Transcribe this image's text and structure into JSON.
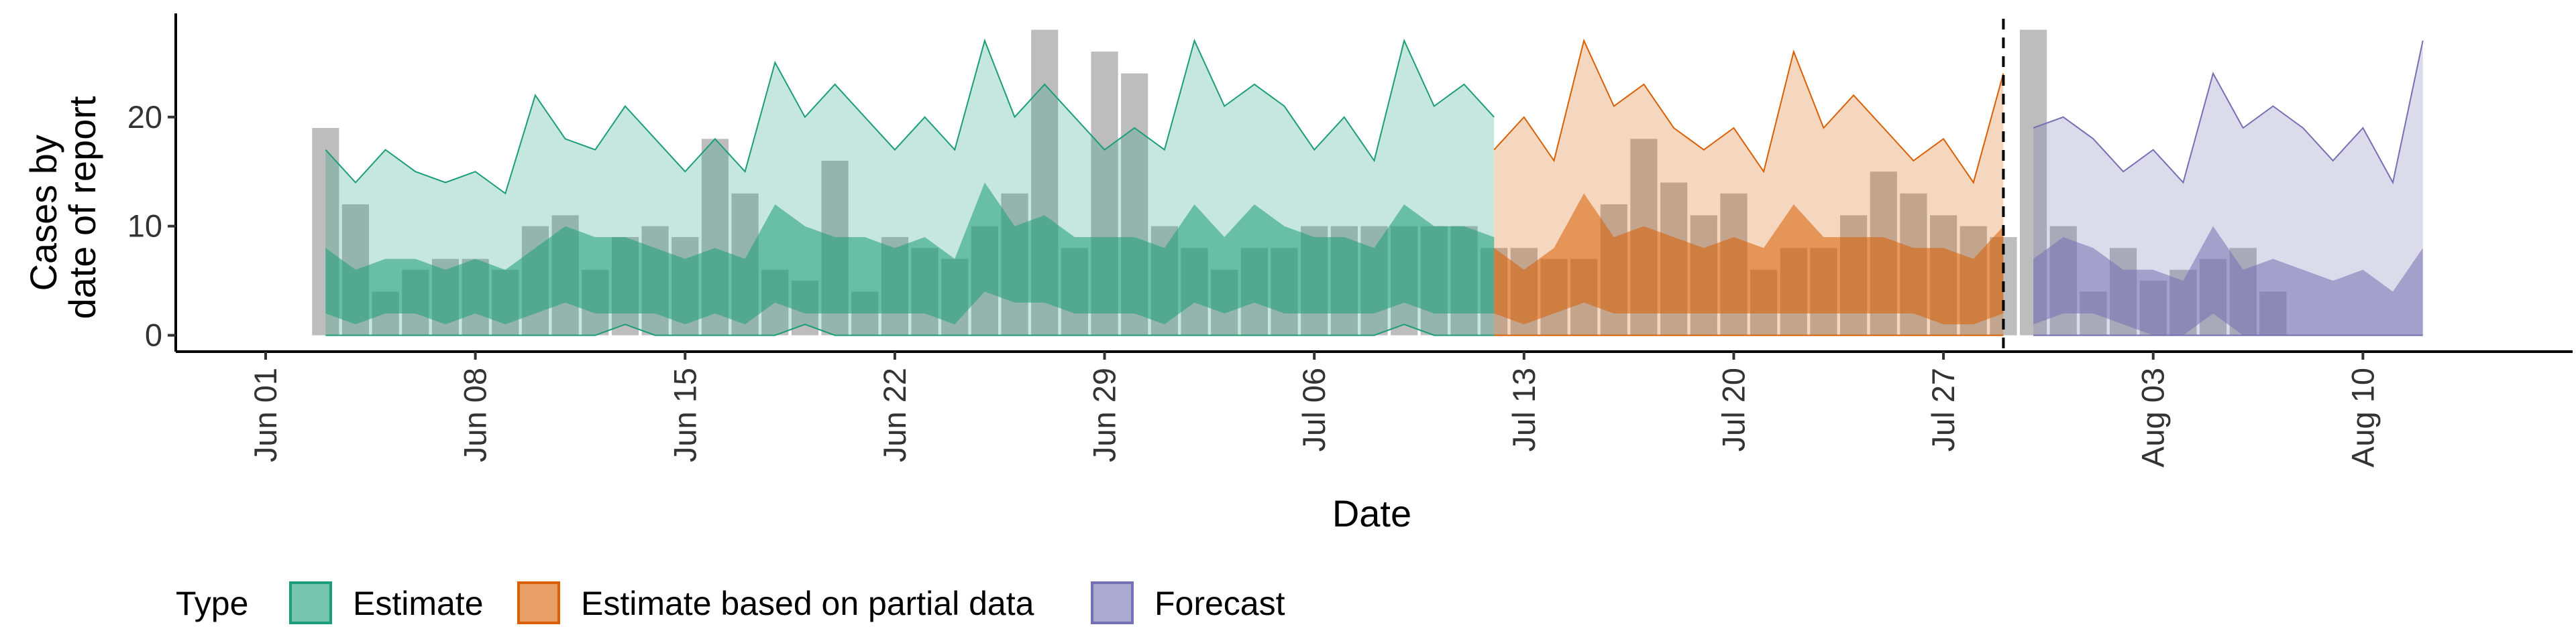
{
  "chart_data": {
    "type": "area",
    "xlabel": "Date",
    "ylabel_line1": "Cases by",
    "ylabel_line2": "date of report",
    "x_range": [
      "2020-05-29",
      "2020-08-17"
    ],
    "ylim": [
      -1.5,
      29.5
    ],
    "y_ticks": [
      0,
      10,
      20
    ],
    "x_ticks": [
      {
        "date": "2020-06-01",
        "label": "Jun 01"
      },
      {
        "date": "2020-06-08",
        "label": "Jun 08"
      },
      {
        "date": "2020-06-15",
        "label": "Jun 15"
      },
      {
        "date": "2020-06-22",
        "label": "Jun 22"
      },
      {
        "date": "2020-06-29",
        "label": "Jun 29"
      },
      {
        "date": "2020-07-06",
        "label": "Jul 06"
      },
      {
        "date": "2020-07-13",
        "label": "Jul 13"
      },
      {
        "date": "2020-07-20",
        "label": "Jul 20"
      },
      {
        "date": "2020-07-27",
        "label": "Jul 27"
      },
      {
        "date": "2020-08-03",
        "label": "Aug 03"
      },
      {
        "date": "2020-08-10",
        "label": "Aug 10"
      }
    ],
    "grid": false,
    "legend_position": "bottom-left",
    "forecast_date": "2020-07-29",
    "colors": {
      "estimate": "#1b9e77",
      "partial": "#d95f02",
      "forecast": "#7570b3",
      "bars": "#999999"
    },
    "legend": {
      "title": "Type",
      "items": [
        {
          "key": "estimate",
          "label": "Estimate"
        },
        {
          "key": "partial",
          "label": "Estimate based on partial data"
        },
        {
          "key": "forecast",
          "label": "Forecast"
        }
      ]
    },
    "observed": {
      "start": "2020-06-03",
      "values": [
        19,
        12,
        4,
        6,
        7,
        7,
        6,
        10,
        11,
        6,
        9,
        10,
        9,
        18,
        13,
        6,
        5,
        16,
        4,
        9,
        8,
        7,
        10,
        13,
        28,
        8,
        26,
        24,
        10,
        8,
        6,
        8,
        8,
        10,
        10,
        10,
        10,
        10,
        10,
        8,
        8,
        7,
        7,
        12,
        18,
        14,
        11,
        13,
        6,
        8,
        8,
        11,
        15,
        13,
        11,
        10,
        9,
        28,
        10,
        4,
        8,
        5,
        6,
        7,
        8,
        4
      ]
    },
    "series": [
      {
        "key": "estimate",
        "start": "2020-06-03",
        "upper90": [
          17,
          14,
          17,
          15,
          14,
          15,
          13,
          22,
          18,
          17,
          21,
          18,
          15,
          18,
          15,
          25,
          20,
          23,
          20,
          17,
          20,
          17,
          27,
          20,
          23,
          20,
          17,
          19,
          17,
          27,
          21,
          23,
          21,
          17,
          20,
          16,
          27,
          21,
          23,
          20
        ],
        "lower90": [
          0,
          0,
          0,
          0,
          0,
          0,
          0,
          0,
          0,
          0,
          1,
          0,
          0,
          0,
          0,
          0,
          1,
          0,
          0,
          0,
          0,
          0,
          0,
          0,
          0,
          0,
          0,
          0,
          0,
          0,
          0,
          0,
          0,
          0,
          0,
          0,
          1,
          0,
          0,
          0
        ],
        "upper50": [
          8,
          6,
          7,
          7,
          6,
          7,
          6,
          8,
          10,
          9,
          9,
          8,
          7,
          8,
          7,
          12,
          10,
          9,
          9,
          8,
          9,
          7,
          14,
          10,
          11,
          9,
          9,
          9,
          8,
          12,
          9,
          12,
          10,
          9,
          9,
          8,
          12,
          10,
          10,
          9
        ],
        "lower50": [
          2,
          1,
          2,
          2,
          1,
          2,
          1,
          2,
          3,
          2,
          2,
          2,
          1,
          2,
          1,
          3,
          2,
          2,
          2,
          2,
          2,
          1,
          4,
          3,
          3,
          2,
          2,
          2,
          1,
          3,
          2,
          3,
          2,
          2,
          2,
          2,
          3,
          2,
          2,
          2
        ]
      },
      {
        "key": "partial",
        "start": "2020-07-12",
        "upper90": [
          17,
          20,
          16,
          27,
          21,
          23,
          19,
          17,
          19,
          15,
          26,
          19,
          22,
          19,
          16,
          18,
          14,
          24
        ],
        "lower90": [
          0,
          0,
          0,
          0,
          0,
          0,
          0,
          0,
          0,
          0,
          0,
          0,
          0,
          0,
          0,
          0,
          0,
          0
        ],
        "upper50": [
          8,
          6,
          8,
          13,
          9,
          10,
          9,
          8,
          9,
          8,
          12,
          9,
          9,
          9,
          8,
          8,
          7,
          10
        ],
        "lower50": [
          2,
          1,
          2,
          3,
          2,
          2,
          2,
          2,
          2,
          2,
          2,
          2,
          2,
          2,
          2,
          1,
          1,
          2
        ]
      },
      {
        "key": "forecast",
        "start": "2020-07-30",
        "upper90": [
          19,
          20,
          18,
          15,
          17,
          14,
          24,
          19,
          21,
          19,
          16,
          19,
          14,
          27
        ],
        "lower90": [
          0,
          0,
          0,
          0,
          0,
          0,
          0,
          0,
          0,
          0,
          0,
          0,
          0,
          0
        ],
        "upper50": [
          7,
          9,
          8,
          6,
          6,
          5,
          10,
          6,
          7,
          6,
          5,
          6,
          4,
          8
        ],
        "lower50": [
          1,
          2,
          2,
          1,
          0,
          0,
          2,
          0,
          0,
          0,
          0,
          0,
          0,
          0
        ]
      }
    ]
  }
}
